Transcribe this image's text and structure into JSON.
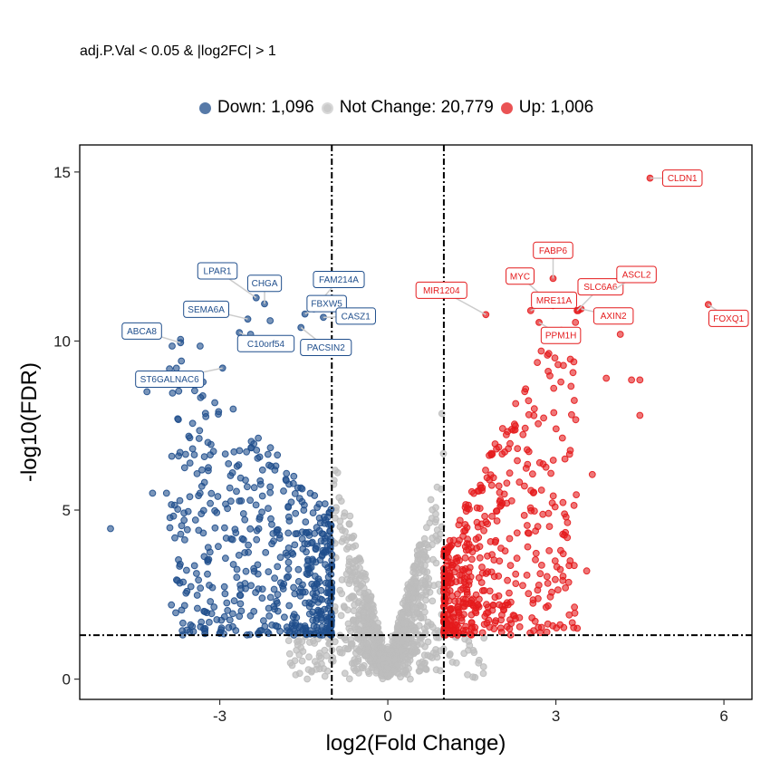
{
  "subtitle": "adj.P.Val < 0.05 & |log2FC| > 1",
  "legend": [
    {
      "label": "Down: 1,096",
      "color": "#1f4e8c"
    },
    {
      "label": "Not Change: 20,779",
      "color": "#bdbdbd"
    },
    {
      "label": "Up: 1,006",
      "color": "#e41a1c"
    }
  ],
  "chart_data": {
    "type": "scatter",
    "xlabel": "log2(Fold Change)",
    "ylabel": "-log10(FDR)",
    "xlim": [
      -5.5,
      6.5
    ],
    "ylim": [
      -0.6,
      15.8
    ],
    "xticks": [
      -3,
      0,
      3,
      6
    ],
    "yticks": [
      0,
      5,
      10,
      15
    ],
    "thresholds": {
      "log2fc": [
        -1,
        1
      ],
      "neg_log10_fdr": 1.3
    },
    "counts": {
      "down": 1096,
      "not_change": 20779,
      "up": 1006
    },
    "colors": {
      "down": "#1f4e8c",
      "not_change": "#bdbdbd",
      "up": "#e41a1c"
    },
    "labeled_genes": [
      {
        "name": "CLDN1",
        "x": 4.68,
        "y": 14.82,
        "group": "up",
        "side": "right",
        "dy": 0
      },
      {
        "name": "FABP6",
        "x": 2.95,
        "y": 11.85,
        "group": "up",
        "side": "up",
        "dy": -1.65
      },
      {
        "name": "MYC",
        "x": 2.95,
        "y": 11.05,
        "group": "up",
        "side": "upleft",
        "dy": -1.75
      },
      {
        "name": "SLC6A6",
        "x": 3.38,
        "y": 10.9,
        "group": "up",
        "side": "upright",
        "dy": -1.3
      },
      {
        "name": "ASCL2",
        "x": 4.05,
        "y": 11.52,
        "group": "up",
        "side": "upright",
        "dy": -0.62
      },
      {
        "name": "MIR1204",
        "x": 1.75,
        "y": 10.78,
        "group": "up",
        "side": "upleft",
        "dy": -1.35
      },
      {
        "name": "MRE11A",
        "x": 2.55,
        "y": 10.9,
        "group": "up",
        "side": "upright",
        "dy": -0.25
      },
      {
        "name": "AXIN2",
        "x": 3.45,
        "y": 10.95,
        "group": "up",
        "side": "right",
        "dy": 0.55
      },
      {
        "name": "PPM1H",
        "x": 2.7,
        "y": 10.55,
        "group": "up",
        "side": "downright",
        "dy": 0.45
      },
      {
        "name": "FOXQ1",
        "x": 5.72,
        "y": 11.08,
        "group": "up",
        "side": "downright",
        "dy": 0.52
      },
      {
        "name": "LPAR1",
        "x": -2.35,
        "y": 11.28,
        "group": "down",
        "side": "upleft",
        "dy": -1.55
      },
      {
        "name": "CHGA",
        "x": -2.2,
        "y": 11.1,
        "group": "down",
        "side": "up",
        "dy": -1.05
      },
      {
        "name": "FAM214A",
        "x": -1.32,
        "y": 10.95,
        "group": "down",
        "side": "upright",
        "dy": -1.75
      },
      {
        "name": "SEMA6A",
        "x": -2.5,
        "y": 10.65,
        "group": "down",
        "side": "upleft",
        "dy": -0.2
      },
      {
        "name": "FBXW5",
        "x": -1.48,
        "y": 10.8,
        "group": "down",
        "side": "upright",
        "dy": -0.25
      },
      {
        "name": "CASZ1",
        "x": -1.15,
        "y": 10.7,
        "group": "down",
        "side": "right",
        "dy": -0.1
      },
      {
        "name": "ABCA8",
        "x": -3.7,
        "y": 9.95,
        "group": "down",
        "side": "upleft",
        "dy": -0.35
      },
      {
        "name": "C10orf54",
        "x": -2.65,
        "y": 10.25,
        "group": "down",
        "side": "downright",
        "dy": 0.3
      },
      {
        "name": "PACSIN2",
        "x": -1.55,
        "y": 10.4,
        "group": "down",
        "side": "downright",
        "dy": 1.0
      },
      {
        "name": "ST6GALNAC6",
        "x": -2.95,
        "y": 9.2,
        "group": "down",
        "side": "downleft",
        "dy": 0.3
      }
    ]
  }
}
